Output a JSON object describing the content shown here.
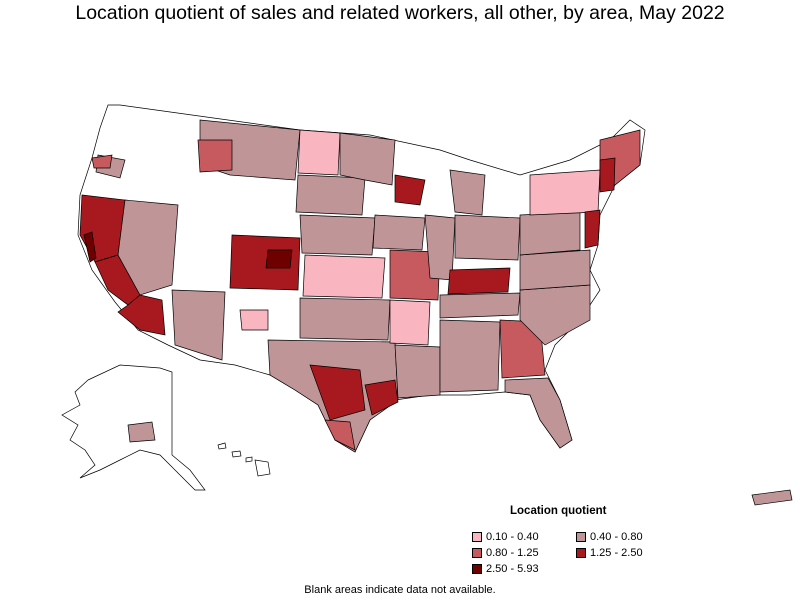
{
  "title": "Location quotient of sales and related workers, all other, by area, May 2022",
  "legend": {
    "title": "Location quotient",
    "items": [
      {
        "label": "0.10 - 0.40",
        "color": "#f9b5c0"
      },
      {
        "label": "0.40 - 0.80",
        "color": "#c09597"
      },
      {
        "label": "0.80 - 1.25",
        "color": "#c75a5e"
      },
      {
        "label": "1.25 - 2.50",
        "color": "#a8191f"
      },
      {
        "label": "2.50 - 5.93",
        "color": "#6e0000"
      }
    ]
  },
  "footnote": "Blank areas indicate data not available.",
  "colors": {
    "no_data": "#ffffff",
    "border": "#000000"
  }
}
